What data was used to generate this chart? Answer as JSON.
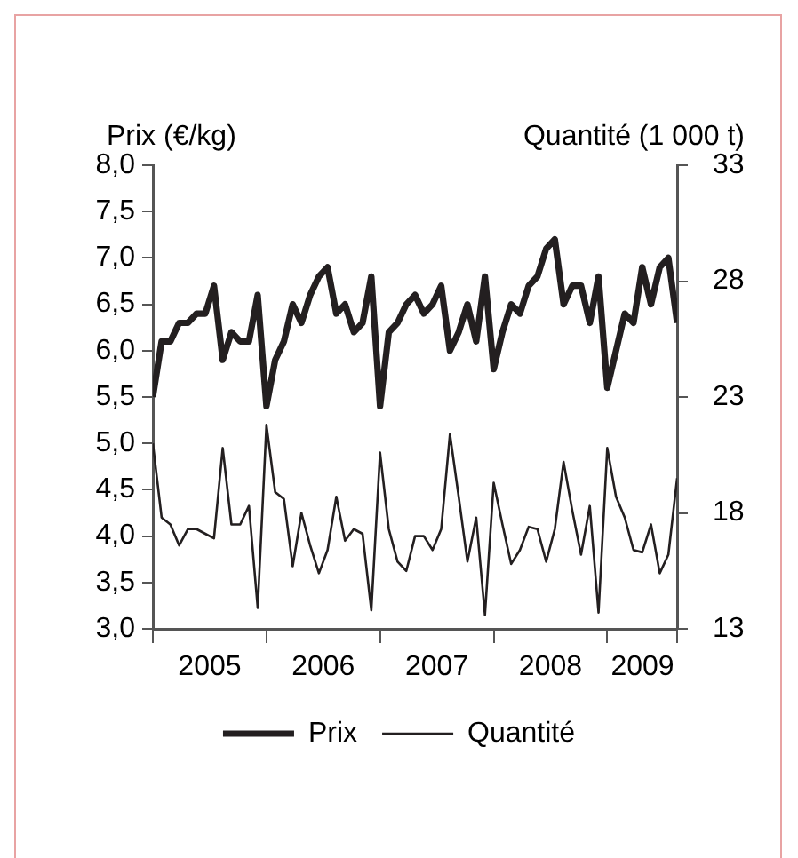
{
  "chart_data": {
    "type": "line",
    "ylabel": "Prix (€/kg)",
    "y2label": "Quantité (1 000 t)",
    "x": [
      2005,
      2005.077,
      2005.154,
      2005.231,
      2005.308,
      2005.385,
      2005.462,
      2005.538,
      2005.615,
      2005.692,
      2005.769,
      2005.846,
      2005.923,
      2006,
      2006.077,
      2006.154,
      2006.231,
      2006.308,
      2006.385,
      2006.462,
      2006.538,
      2006.615,
      2006.692,
      2006.769,
      2006.846,
      2006.923,
      2007,
      2007.077,
      2007.154,
      2007.231,
      2007.308,
      2007.385,
      2007.462,
      2007.538,
      2007.615,
      2007.692,
      2007.769,
      2007.846,
      2007.923,
      2008,
      2008.077,
      2008.154,
      2008.231,
      2008.308,
      2008.385,
      2008.462,
      2008.538,
      2008.615,
      2008.692,
      2008.769,
      2008.846,
      2008.923,
      2009,
      2009.077,
      2009.154,
      2009.231,
      2009.308,
      2009.385,
      2009.462,
      2009.538,
      2009.615
    ],
    "series": [
      {
        "name": "Prix",
        "color": "#231f20",
        "values": [
          5.5,
          6.1,
          6.1,
          6.3,
          6.3,
          6.4,
          6.4,
          6.7,
          5.9,
          6.2,
          6.1,
          6.1,
          6.6,
          5.4,
          5.9,
          6.1,
          6.5,
          6.3,
          6.6,
          6.8,
          6.9,
          6.4,
          6.5,
          6.2,
          6.3,
          6.8,
          5.4,
          6.2,
          6.3,
          6.5,
          6.6,
          6.4,
          6.5,
          6.7,
          6.0,
          6.2,
          6.5,
          6.1,
          6.8,
          5.8,
          6.2,
          6.5,
          6.4,
          6.7,
          6.8,
          7.1,
          7.2,
          6.5,
          6.7,
          6.7,
          6.3,
          6.8,
          5.6,
          6.0,
          6.4,
          6.3,
          6.9,
          6.5,
          6.9,
          7.0,
          6.3
        ]
      },
      {
        "name": "Quantité",
        "color": "#231f20",
        "axis": "y2",
        "values": [
          21.0,
          17.8,
          17.5,
          16.6,
          17.3,
          17.3,
          17.1,
          16.9,
          20.8,
          17.5,
          17.5,
          18.3,
          13.9,
          21.8,
          18.9,
          18.6,
          15.7,
          18.0,
          16.6,
          15.4,
          16.4,
          18.7,
          16.8,
          17.3,
          17.1,
          13.8,
          20.6,
          17.3,
          15.9,
          15.5,
          17.0,
          17.0,
          16.4,
          17.3,
          21.4,
          18.7,
          15.9,
          17.8,
          13.6,
          19.3,
          17.5,
          15.8,
          16.4,
          17.4,
          17.3,
          15.9,
          17.3,
          20.2,
          18.1,
          16.2,
          18.3,
          13.7,
          20.8,
          18.7,
          17.8,
          16.4,
          16.3,
          17.5,
          15.4,
          16.2,
          19.5
        ]
      }
    ],
    "xlim": [
      2005,
      2009.615
    ],
    "xticks": [
      {
        "value": 2005,
        "label": null
      },
      {
        "value": 2005.5,
        "label": "2005"
      },
      {
        "value": 2006,
        "label": null
      },
      {
        "value": 2006.5,
        "label": "2006"
      },
      {
        "value": 2007,
        "label": null
      },
      {
        "value": 2007.5,
        "label": "2007"
      },
      {
        "value": 2008,
        "label": null
      },
      {
        "value": 2008.5,
        "label": "2008"
      },
      {
        "value": 2009,
        "label": null
      },
      {
        "value": 2009.31,
        "label": "2009"
      },
      {
        "value": 2009.615,
        "label": null
      }
    ],
    "ylim": [
      3,
      8
    ],
    "yticks": [
      {
        "value": 3,
        "label": "3,0"
      },
      {
        "value": 3.5,
        "label": "3,5"
      },
      {
        "value": 4,
        "label": "4,0"
      },
      {
        "value": 4.5,
        "label": "4,5"
      },
      {
        "value": 5,
        "label": "5,0"
      },
      {
        "value": 5.5,
        "label": "5,5"
      },
      {
        "value": 6,
        "label": "6,0"
      },
      {
        "value": 6.5,
        "label": "6,5"
      },
      {
        "value": 7,
        "label": "7,0"
      },
      {
        "value": 7.5,
        "label": "7,5"
      },
      {
        "value": 8,
        "label": "8,0"
      }
    ],
    "y2lim": [
      13,
      33
    ],
    "y2ticks": [
      13,
      18,
      23,
      28,
      33
    ],
    "grid": false,
    "legend": "bottom",
    "marker": "none",
    "line_style": "solid"
  }
}
